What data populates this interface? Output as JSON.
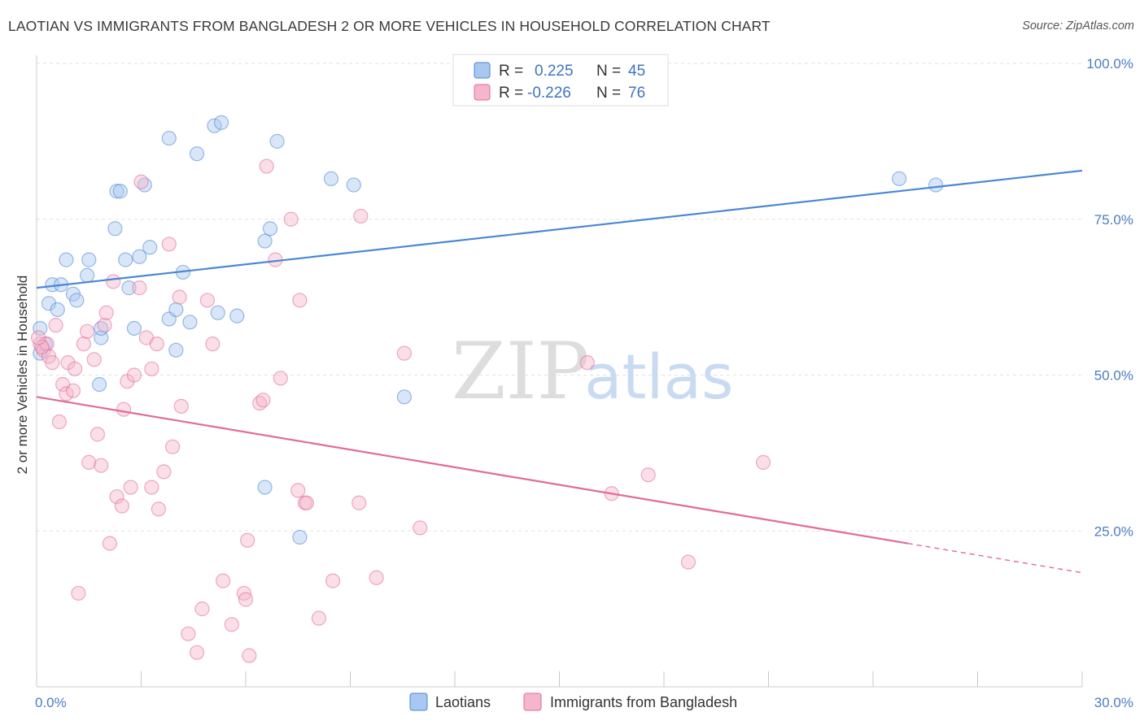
{
  "title": "LAOTIAN VS IMMIGRANTS FROM BANGLADESH 2 OR MORE VEHICLES IN HOUSEHOLD CORRELATION CHART",
  "source": "Source: ZipAtlas.com",
  "watermark": {
    "zip": "ZIP",
    "atlas": "atlas"
  },
  "legend_top": {
    "r_label": "R =",
    "n_label": "N =",
    "rows": [
      {
        "r": "0.225",
        "n": "45",
        "color": "#a9c8f0"
      },
      {
        "r": "-0.226",
        "n": "76",
        "color": "#f5b6cb"
      }
    ]
  },
  "chart_data": {
    "type": "scatter",
    "title": "LAOTIAN VS IMMIGRANTS FROM BANGLADESH 2 OR MORE VEHICLES IN HOUSEHOLD CORRELATION CHART",
    "xlabel": "",
    "ylabel": "2 or more Vehicles in Household",
    "xlim": [
      0,
      30
    ],
    "ylim": [
      0,
      100
    ],
    "x_tick_labels": [
      "0.0%",
      "30.0%"
    ],
    "y_ticks": [
      25,
      50,
      75,
      100
    ],
    "y_tick_labels": [
      "25.0%",
      "50.0%",
      "75.0%",
      "100.0%"
    ],
    "grid": true,
    "legend_position": "bottom-center",
    "series": [
      {
        "name": "Laotians",
        "color": "#4a86d6",
        "fill": "#a9c8f0",
        "trend": {
          "x0": 0,
          "y0": 64.0,
          "x1": 30,
          "y1": 82.8
        },
        "points": [
          [
            0.1,
            53.5
          ],
          [
            0.1,
            57.5
          ],
          [
            0.35,
            61.5
          ],
          [
            0.45,
            64.5
          ],
          [
            0.6,
            60.5
          ],
          [
            0.7,
            64.5
          ],
          [
            0.85,
            68.5
          ],
          [
            1.05,
            63.0
          ],
          [
            1.15,
            62.0
          ],
          [
            1.45,
            66.0
          ],
          [
            1.5,
            68.5
          ],
          [
            1.85,
            56.0
          ],
          [
            1.85,
            57.5
          ],
          [
            1.8,
            48.5
          ],
          [
            2.25,
            73.5
          ],
          [
            2.3,
            79.5
          ],
          [
            2.4,
            79.5
          ],
          [
            2.55,
            68.5
          ],
          [
            2.65,
            64.0
          ],
          [
            2.8,
            57.5
          ],
          [
            2.95,
            69.0
          ],
          [
            3.1,
            80.5
          ],
          [
            3.25,
            70.5
          ],
          [
            3.8,
            59.0
          ],
          [
            3.8,
            88.0
          ],
          [
            4.0,
            60.5
          ],
          [
            4.0,
            54.0
          ],
          [
            4.2,
            66.5
          ],
          [
            4.4,
            58.5
          ],
          [
            4.6,
            85.5
          ],
          [
            5.1,
            90.0
          ],
          [
            5.2,
            60.0
          ],
          [
            5.3,
            90.5
          ],
          [
            5.75,
            59.5
          ],
          [
            6.55,
            71.5
          ],
          [
            6.7,
            73.5
          ],
          [
            6.9,
            87.5
          ],
          [
            6.55,
            32.0
          ],
          [
            7.55,
            24.0
          ],
          [
            8.45,
            81.5
          ],
          [
            9.1,
            80.5
          ],
          [
            10.55,
            46.5
          ],
          [
            24.75,
            81.5
          ],
          [
            25.8,
            80.5
          ],
          [
            0.25,
            55.0
          ]
        ]
      },
      {
        "name": "Immigrants from Bangladesh",
        "color": "#e26a96",
        "fill": "#f5b6cb",
        "trend": {
          "x0": 0,
          "y0": 46.5,
          "x1": 25,
          "y1": 23.0
        },
        "trend_dashed": {
          "x0": 25,
          "y0": 23.0,
          "x1": 30,
          "y1": 18.3
        },
        "points": [
          [
            0.1,
            55.0
          ],
          [
            0.2,
            54.0
          ],
          [
            0.3,
            55.0
          ],
          [
            0.35,
            53.0
          ],
          [
            0.45,
            52.0
          ],
          [
            0.55,
            58.0
          ],
          [
            0.65,
            42.5
          ],
          [
            0.75,
            48.5
          ],
          [
            0.85,
            47.0
          ],
          [
            0.9,
            52.0
          ],
          [
            1.05,
            47.5
          ],
          [
            1.1,
            51.0
          ],
          [
            1.2,
            15.0
          ],
          [
            1.35,
            55.0
          ],
          [
            1.45,
            57.0
          ],
          [
            1.5,
            36.0
          ],
          [
            1.65,
            52.5
          ],
          [
            1.75,
            40.5
          ],
          [
            1.85,
            35.5
          ],
          [
            1.95,
            58.0
          ],
          [
            2.0,
            60.0
          ],
          [
            2.1,
            23.0
          ],
          [
            2.2,
            65.0
          ],
          [
            2.3,
            30.5
          ],
          [
            2.45,
            29.0
          ],
          [
            2.5,
            44.5
          ],
          [
            2.6,
            49.0
          ],
          [
            2.7,
            32.0
          ],
          [
            2.8,
            50.0
          ],
          [
            2.95,
            64.0
          ],
          [
            3.0,
            81.0
          ],
          [
            3.15,
            56.0
          ],
          [
            3.3,
            51.0
          ],
          [
            3.3,
            32.0
          ],
          [
            3.45,
            55.0
          ],
          [
            3.5,
            28.5
          ],
          [
            3.65,
            34.5
          ],
          [
            3.8,
            71.0
          ],
          [
            3.9,
            38.5
          ],
          [
            4.1,
            62.5
          ],
          [
            4.15,
            45.0
          ],
          [
            4.35,
            8.5
          ],
          [
            4.6,
            5.5
          ],
          [
            4.75,
            12.5
          ],
          [
            4.9,
            62.0
          ],
          [
            5.05,
            55.0
          ],
          [
            5.35,
            17.0
          ],
          [
            5.6,
            10.0
          ],
          [
            5.95,
            15.0
          ],
          [
            6.0,
            14.0
          ],
          [
            6.05,
            23.5
          ],
          [
            6.1,
            5.0
          ],
          [
            6.4,
            45.5
          ],
          [
            6.5,
            46.0
          ],
          [
            6.6,
            83.5
          ],
          [
            6.85,
            68.5
          ],
          [
            7.0,
            49.5
          ],
          [
            7.3,
            75.0
          ],
          [
            7.5,
            31.5
          ],
          [
            7.55,
            62.0
          ],
          [
            7.7,
            29.5
          ],
          [
            7.75,
            29.5
          ],
          [
            8.1,
            11.0
          ],
          [
            8.5,
            17.0
          ],
          [
            9.25,
            29.5
          ],
          [
            9.3,
            75.5
          ],
          [
            9.75,
            17.5
          ],
          [
            10.55,
            53.5
          ],
          [
            11.0,
            25.5
          ],
          [
            15.8,
            52.0
          ],
          [
            16.5,
            31.0
          ],
          [
            17.55,
            34.0
          ],
          [
            18.7,
            20.0
          ],
          [
            20.85,
            36.0
          ],
          [
            0.15,
            54.5
          ],
          [
            0.05,
            56.0
          ]
        ]
      }
    ]
  }
}
